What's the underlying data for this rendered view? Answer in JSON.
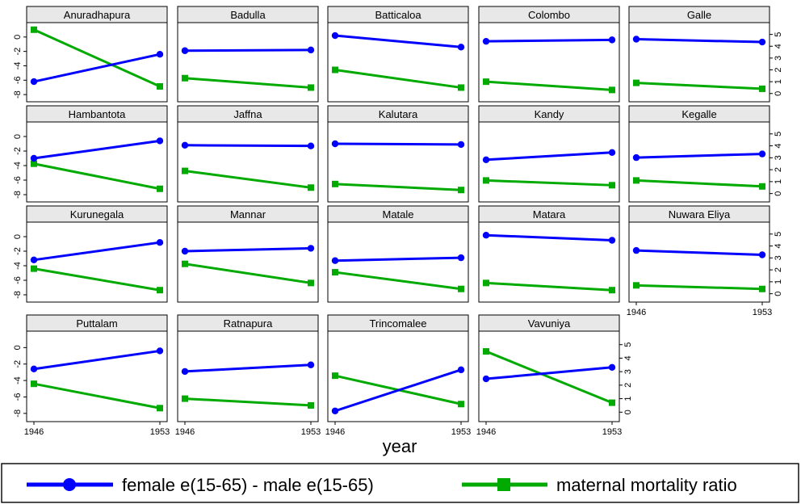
{
  "chart_data": {
    "type": "line",
    "layout": "small-multiples",
    "x": [
      1946,
      1953
    ],
    "x_tick_labels": [
      "1946",
      "1953"
    ],
    "xlabel": "year",
    "left_axis": {
      "ylim": [
        -9,
        2
      ],
      "ticks": [
        0,
        -2,
        -4,
        -6,
        -8
      ],
      "tick_labels": [
        "0",
        "-2",
        "-4",
        "-6",
        "-8"
      ]
    },
    "right_axis": {
      "ylim": [
        -0.7,
        6
      ],
      "ticks": [
        0,
        1,
        2,
        3,
        4,
        5
      ],
      "tick_labels": [
        "0",
        "1",
        "2",
        "3",
        "4",
        "5"
      ]
    },
    "colors": {
      "female": "#0000ff",
      "maternal": "#00aa00",
      "strip": "#e8e8e8"
    },
    "legend": {
      "placement": "bottom",
      "items": [
        {
          "label": "female e(15-65) - male e(15-65)",
          "marker": "circle"
        },
        {
          "label": "maternal mortality ratio",
          "marker": "square"
        }
      ]
    },
    "panels": [
      {
        "name": "Anuradhapura",
        "female": [
          -6.2,
          -2.4
        ],
        "maternal": [
          5.4,
          0.6
        ]
      },
      {
        "name": "Badulla",
        "female": [
          -1.9,
          -1.8
        ],
        "maternal": [
          1.3,
          0.5
        ]
      },
      {
        "name": "Batticaloa",
        "female": [
          0.2,
          -1.4
        ],
        "maternal": [
          2.0,
          0.5
        ]
      },
      {
        "name": "Colombo",
        "female": [
          -0.6,
          -0.4
        ],
        "maternal": [
          1.0,
          0.3
        ]
      },
      {
        "name": "Galle",
        "female": [
          -0.3,
          -0.7
        ],
        "maternal": [
          0.9,
          0.4
        ]
      },
      {
        "name": "Hambantota",
        "female": [
          -3.0,
          -0.6
        ],
        "maternal": [
          2.5,
          0.4
        ]
      },
      {
        "name": "Jaffna",
        "female": [
          -1.2,
          -1.3
        ],
        "maternal": [
          1.9,
          0.5
        ]
      },
      {
        "name": "Kalutara",
        "female": [
          -1.0,
          -1.1
        ],
        "maternal": [
          0.8,
          0.3
        ]
      },
      {
        "name": "Kandy",
        "female": [
          -3.2,
          -2.2
        ],
        "maternal": [
          1.1,
          0.7
        ]
      },
      {
        "name": "Kegalle",
        "female": [
          -2.9,
          -2.4
        ],
        "maternal": [
          1.1,
          0.6
        ]
      },
      {
        "name": "Kurunegala",
        "female": [
          -3.2,
          -0.8
        ],
        "maternal": [
          2.1,
          0.3
        ]
      },
      {
        "name": "Mannar",
        "female": [
          -2.0,
          -1.6
        ],
        "maternal": [
          2.5,
          0.9
        ]
      },
      {
        "name": "Matale",
        "female": [
          -3.3,
          -2.9
        ],
        "maternal": [
          1.8,
          0.4
        ]
      },
      {
        "name": "Matara",
        "female": [
          0.2,
          -0.5
        ],
        "maternal": [
          0.9,
          0.3
        ]
      },
      {
        "name": "Nuwara Eliya",
        "female": [
          -1.9,
          -2.5
        ],
        "maternal": [
          0.7,
          0.4
        ]
      },
      {
        "name": "Puttalam",
        "female": [
          -2.6,
          -0.4
        ],
        "maternal": [
          2.1,
          0.3
        ]
      },
      {
        "name": "Ratnapura",
        "female": [
          -2.9,
          -2.1
        ],
        "maternal": [
          1.0,
          0.5
        ]
      },
      {
        "name": "Trincomalee",
        "female": [
          -7.7,
          -2.7
        ],
        "maternal": [
          2.7,
          0.6
        ]
      },
      {
        "name": "Vavuniya",
        "female": [
          -3.8,
          -2.4
        ],
        "maternal": [
          4.5,
          0.7
        ]
      }
    ]
  }
}
